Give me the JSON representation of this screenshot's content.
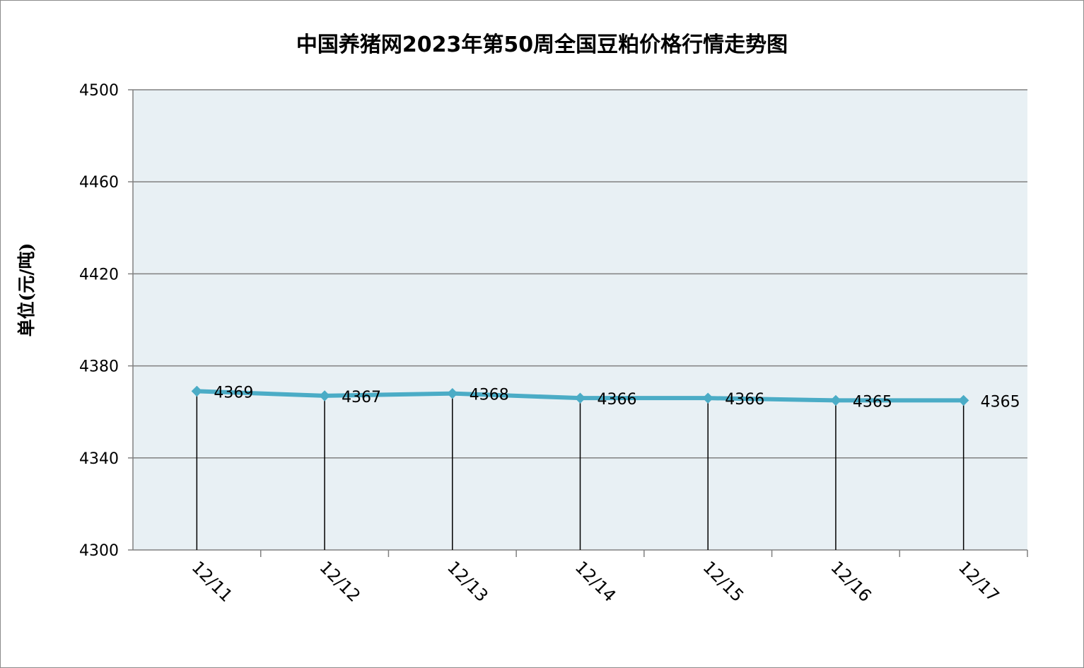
{
  "chart_data": {
    "type": "line",
    "title": "中国养猪网2023年第50周全国豆粕价格行情走势图",
    "ylabel": "单位(元/吨)",
    "xlabel": "",
    "categories": [
      "12/11",
      "12/12",
      "12/13",
      "12/14",
      "12/15",
      "12/16",
      "12/17"
    ],
    "values": [
      4369,
      4367,
      4368,
      4366,
      4366,
      4365,
      4365
    ],
    "data_labels": [
      "4369",
      "4367",
      "4368",
      "4366",
      "4366",
      "4365",
      "4365"
    ],
    "ylim": [
      4300,
      4500
    ],
    "y_ticks": [
      4300,
      4340,
      4380,
      4420,
      4460,
      4500
    ],
    "y_tick_labels": [
      "4300",
      "4340",
      "4380",
      "4420",
      "4460",
      "4500"
    ],
    "grid": true,
    "drop_lines": true,
    "x_tick_rotation": "45deg",
    "colors": {
      "line": "#4bacc6",
      "plot_background": "#e8f0f4",
      "gridline": "#808080",
      "drop_line": "#000000",
      "frame_border": "#8c8c8c"
    }
  }
}
